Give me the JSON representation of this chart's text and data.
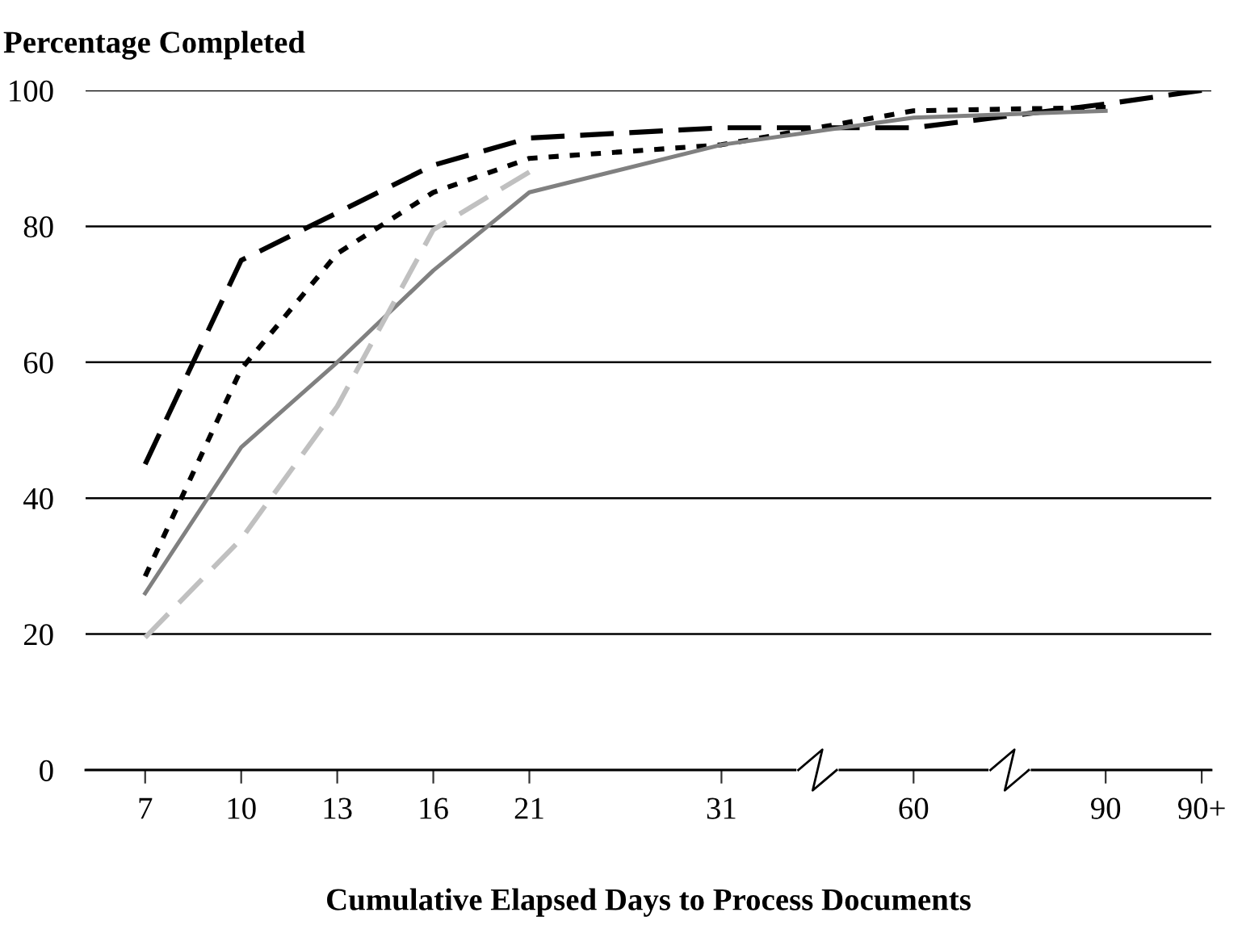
{
  "chart_data": {
    "type": "line",
    "title": "Percentage Completed",
    "xlabel": "Cumulative Elapsed Days to Process Documents",
    "categories": [
      "7",
      "10",
      "13",
      "16",
      "21",
      null,
      "31",
      null,
      "60",
      null,
      "90",
      "90+"
    ],
    "ylim": [
      0,
      100
    ],
    "yticks": [
      0,
      20,
      40,
      60,
      80,
      100
    ],
    "grid": "y",
    "legend": false,
    "marker": "none",
    "series": [
      {
        "color": "#000000",
        "line_style": "dashed",
        "values": [
          45,
          75,
          82,
          89,
          93,
          null,
          94.5,
          null,
          94.5,
          null,
          98,
          100
        ]
      },
      {
        "color": "#000000",
        "line_style": "dotted",
        "values": [
          28.5,
          59,
          76,
          85,
          90,
          null,
          92,
          null,
          97,
          null,
          97.5,
          null
        ]
      },
      {
        "color": "#808080",
        "line_style": "solid",
        "values": [
          26,
          47.5,
          60,
          73.5,
          85,
          null,
          92,
          null,
          96,
          null,
          97,
          null
        ]
      },
      {
        "color": "#c0c0c0",
        "line_style": "dashed",
        "values": [
          19.5,
          34,
          53.5,
          79.5,
          88,
          null,
          null,
          null,
          null,
          null,
          null,
          null
        ]
      }
    ]
  }
}
